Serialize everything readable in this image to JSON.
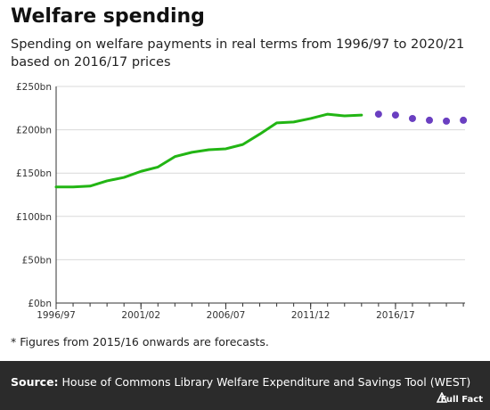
{
  "title": "Welfare spending",
  "subtitle": "Spending on welfare payments in real terms from 1996/97 to 2020/21 based on 2016/17 prices",
  "footnote": "* Figures from 2015/16 onwards are forecasts.",
  "source_label": "Source:",
  "source_text": "House of Commons Library Welfare Expenditure and Savings Tool (WEST)",
  "logo_text": "Full Fact",
  "colors": {
    "line": "#22b514",
    "forecast": "#6a3fc1",
    "footer_bg": "#2b2b2b"
  },
  "chart_data": {
    "type": "line",
    "title": "Welfare spending",
    "xlabel": "",
    "ylabel": "",
    "ylim": [
      0,
      250
    ],
    "y_ticks": [
      "£0bn",
      "£50bn",
      "£100bn",
      "£150bn",
      "£200bn",
      "£250bn"
    ],
    "y_tick_values": [
      0,
      50,
      100,
      150,
      200,
      250
    ],
    "x_tick_labels": [
      "1996/97",
      "2001/02",
      "2006/07",
      "2011/12",
      "2016/17"
    ],
    "x_tick_years": [
      1996,
      2001,
      2006,
      2011,
      2016
    ],
    "x_range": [
      1996,
      2020
    ],
    "grid": true,
    "series": [
      {
        "kind": "actual",
        "x": [
          1996,
          1997,
          1998,
          1999,
          2000,
          2001,
          2002,
          2003,
          2004,
          2005,
          2006,
          2007,
          2008,
          2009,
          2010,
          2011,
          2012,
          2013,
          2014
        ],
        "y": [
          134,
          134,
          135,
          141,
          145,
          152,
          157,
          169,
          174,
          177,
          178,
          183,
          195,
          208,
          209,
          213,
          218,
          216,
          217
        ]
      },
      {
        "kind": "forecast",
        "x": [
          2015,
          2016,
          2017,
          2018,
          2019,
          2020
        ],
        "y": [
          218,
          217,
          213,
          211,
          210,
          211
        ]
      }
    ]
  }
}
